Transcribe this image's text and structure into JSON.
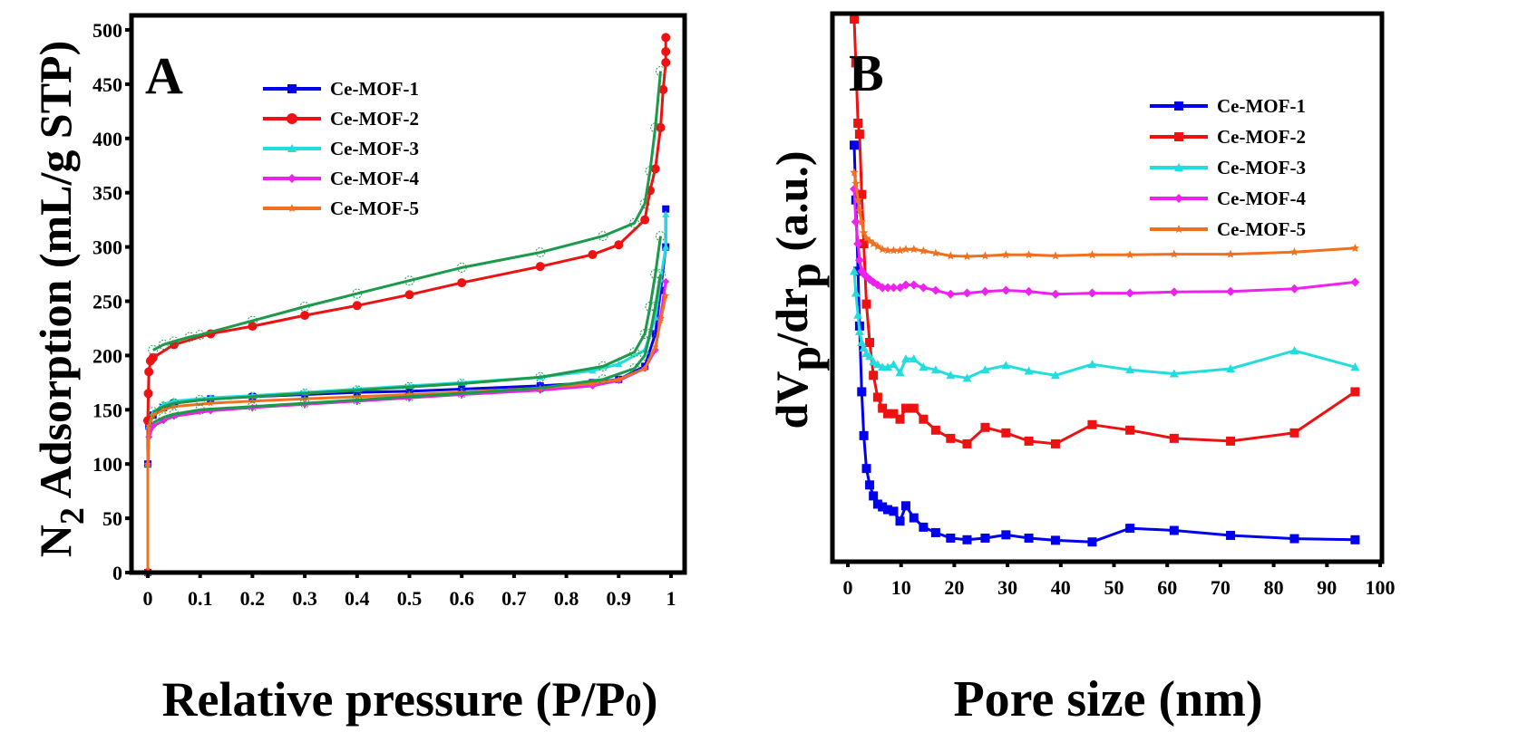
{
  "chart_data": [
    {
      "panel": "A",
      "type": "line",
      "title": "",
      "xlabel": "Relative pressure (P/P0)",
      "xlabel_parts": [
        "Relative pressure (P/P",
        "0",
        ")"
      ],
      "ylabel": "N2 Adsorption (mL/g STP)",
      "ylabel_parts": [
        "N",
        "2",
        " Adsorption (mL/g STP)"
      ],
      "xlim": [
        -0.04,
        1.02
      ],
      "ylim": [
        0,
        500
      ],
      "xticks": [
        0,
        0.1,
        0.2,
        0.3,
        0.4,
        0.5,
        0.6,
        0.7,
        0.8,
        0.9,
        1
      ],
      "xtick_labels": [
        "0",
        "0.1",
        "0.2",
        "0.3",
        "0.4",
        "0.5",
        "0.6",
        "0.7",
        "0.8",
        "0.9",
        "1"
      ],
      "yticks": [
        0,
        50,
        100,
        150,
        200,
        250,
        300,
        350,
        400,
        450,
        500
      ],
      "ytick_labels": [
        "0",
        "50",
        "100",
        "150",
        "200",
        "250",
        "300",
        "350",
        "400",
        "450",
        "500"
      ],
      "grid": false,
      "legend_position": "top-center",
      "series": [
        {
          "name": "Ce-MOF-1",
          "color": "#0000ee",
          "marker": "square",
          "x": [
            0,
            0,
            0.002,
            0.01,
            0.03,
            0.05,
            0.12,
            0.2,
            0.3,
            0.4,
            0.5,
            0.6,
            0.75,
            0.85,
            0.9,
            0.95,
            0.97,
            0.98,
            0.99,
            0.99
          ],
          "y": [
            0,
            100,
            135,
            145,
            152,
            156,
            160,
            162,
            164,
            166,
            167,
            169,
            172,
            175,
            178,
            190,
            220,
            260,
            300,
            335
          ]
        },
        {
          "name": "Ce-MOF-2",
          "color": "#ee1111",
          "marker": "circle",
          "x": [
            0,
            0,
            0.001,
            0.002,
            0.005,
            0.01,
            0.05,
            0.12,
            0.2,
            0.3,
            0.4,
            0.5,
            0.6,
            0.75,
            0.85,
            0.9,
            0.95,
            0.96,
            0.97,
            0.98,
            0.985,
            0.99,
            0.99,
            0.99
          ],
          "y": [
            0,
            140,
            165,
            185,
            195,
            198,
            210,
            220,
            227,
            237,
            246,
            256,
            267,
            282,
            293,
            302,
            325,
            352,
            372,
            410,
            445,
            470,
            480,
            493
          ]
        },
        {
          "name": "Ce-MOF-3",
          "color": "#22dddd",
          "marker": "triangle",
          "x": [
            0,
            0,
            0.002,
            0.01,
            0.03,
            0.05,
            0.12,
            0.2,
            0.3,
            0.4,
            0.5,
            0.6,
            0.75,
            0.85,
            0.9,
            0.95,
            0.97,
            0.98,
            0.99,
            0.99
          ],
          "y": [
            0,
            100,
            135,
            147,
            155,
            158,
            161,
            163,
            166,
            169,
            172,
            175,
            180,
            186,
            192,
            205,
            235,
            270,
            300,
            330
          ]
        },
        {
          "name": "Ce-MOF-4",
          "color": "#ee22ee",
          "marker": "diamond",
          "x": [
            0,
            0,
            0.002,
            0.01,
            0.03,
            0.05,
            0.12,
            0.2,
            0.3,
            0.4,
            0.5,
            0.6,
            0.75,
            0.85,
            0.9,
            0.95,
            0.97,
            0.98,
            0.99
          ],
          "y": [
            0,
            100,
            125,
            135,
            140,
            144,
            149,
            152,
            155,
            158,
            161,
            164,
            168,
            172,
            177,
            188,
            205,
            235,
            268
          ]
        },
        {
          "name": "Ce-MOF-5",
          "color": "#f07020",
          "marker": "star",
          "x": [
            0,
            0,
            0.002,
            0.01,
            0.03,
            0.05,
            0.12,
            0.2,
            0.3,
            0.4,
            0.5,
            0.6,
            0.75,
            0.85,
            0.9,
            0.95,
            0.97,
            0.98,
            0.99
          ],
          "y": [
            0,
            100,
            135,
            145,
            150,
            153,
            156,
            158,
            160,
            162,
            164,
            166,
            170,
            174,
            178,
            188,
            208,
            232,
            255
          ]
        },
        {
          "name": "desorption-2",
          "color": "#1a9a4a",
          "marker": "open-circle",
          "legend": false,
          "x": [
            0.01,
            0.03,
            0.05,
            0.08,
            0.1,
            0.2,
            0.3,
            0.4,
            0.5,
            0.6,
            0.75,
            0.87,
            0.93,
            0.95,
            0.96,
            0.97,
            0.98
          ],
          "y": [
            205,
            210,
            213,
            217,
            219,
            232,
            245,
            257,
            269,
            281,
            295,
            310,
            322,
            340,
            370,
            410,
            462
          ]
        },
        {
          "name": "desorption-upper-group",
          "color": "#1a9a4a",
          "marker": "open-circle",
          "legend": false,
          "x": [
            0.01,
            0.03,
            0.05,
            0.1,
            0.2,
            0.3,
            0.4,
            0.5,
            0.6,
            0.75,
            0.87,
            0.93,
            0.95,
            0.96,
            0.97,
            0.98
          ],
          "y": [
            148,
            153,
            156,
            159,
            162,
            165,
            168,
            171,
            174,
            180,
            190,
            203,
            220,
            245,
            275,
            310
          ]
        },
        {
          "name": "desorption-lower-group",
          "color": "#1a9a4a",
          "marker": "open-circle",
          "legend": false,
          "x": [
            0.01,
            0.03,
            0.05,
            0.1,
            0.2,
            0.3,
            0.4,
            0.5,
            0.6,
            0.75,
            0.87,
            0.93,
            0.95,
            0.96,
            0.97,
            0.98
          ],
          "y": [
            138,
            143,
            146,
            150,
            153,
            156,
            159,
            162,
            165,
            170,
            178,
            188,
            200,
            220,
            245,
            275
          ]
        }
      ]
    },
    {
      "panel": "B",
      "type": "line",
      "title": "",
      "xlabel": "Pore size (nm)",
      "ylabel": "dVp/drp (a.u.)",
      "ylabel_parts": [
        "dV",
        "p",
        "/dr",
        "p",
        " (a.u.)"
      ],
      "xlim": [
        -2,
        100
      ],
      "ylim": [
        0,
        100
      ],
      "y_units_note": "arbitrary units; values normalized 0-100 to plot frame",
      "xticks": [
        0,
        10,
        20,
        30,
        40,
        50,
        60,
        70,
        80,
        90,
        100
      ],
      "xtick_labels": [
        "0",
        "10",
        "20",
        "30",
        "40",
        "50",
        "60",
        "70",
        "80",
        "90",
        "100"
      ],
      "yticks": [],
      "grid": false,
      "legend_position": "top-center",
      "series": [
        {
          "name": "Ce-MOF-1",
          "color": "#0000ee",
          "marker": "square",
          "x": [
            1.2,
            1.5,
            1.9,
            2.2,
            2.6,
            3.0,
            3.5,
            4.1,
            4.8,
            5.6,
            6.5,
            7.5,
            8.6,
            9.8,
            10.9,
            12.4,
            14.2,
            16.5,
            19.3,
            22.4,
            25.8,
            29.7,
            34.0,
            39.0,
            45.9,
            53.0,
            61.3,
            71.9,
            83.9,
            95.3
          ],
          "y": [
            76,
            66,
            53,
            43,
            31,
            23,
            17,
            14,
            12,
            10.5,
            10,
            9.5,
            9.2,
            7.4,
            10.2,
            8.0,
            6.3,
            5.3,
            4.3,
            4.0,
            4.3,
            4.9,
            4.3,
            3.9,
            3.6,
            6.1,
            5.7,
            4.8,
            4.2,
            4.0
          ]
        },
        {
          "name": "Ce-MOF-2",
          "color": "#ee1111",
          "marker": "square",
          "x": [
            1.2,
            1.5,
            1.9,
            2.2,
            2.6,
            3.0,
            3.5,
            4.1,
            4.8,
            5.6,
            6.5,
            7.5,
            8.6,
            9.8,
            10.9,
            12.4,
            14.2,
            16.5,
            19.3,
            22.4,
            25.8,
            29.7,
            34.0,
            39.0,
            45.9,
            53.0,
            61.3,
            71.9,
            83.9,
            95.3
          ],
          "y": [
            99,
            91,
            80,
            78,
            67,
            58,
            47,
            40,
            34,
            30,
            28,
            27,
            27,
            26,
            28,
            28,
            26,
            24,
            22.5,
            21.5,
            24.5,
            23.5,
            22,
            21.5,
            25,
            24,
            22.5,
            22,
            23.5,
            31
          ]
        },
        {
          "name": "Ce-MOF-3",
          "color": "#22dddd",
          "marker": "triangle",
          "x": [
            1.2,
            1.5,
            1.9,
            2.2,
            2.6,
            3.0,
            3.5,
            4.1,
            4.8,
            5.6,
            6.5,
            7.5,
            8.6,
            9.8,
            10.9,
            12.4,
            14.2,
            16.5,
            19.3,
            22.4,
            25.8,
            29.7,
            34.0,
            39.0,
            45.9,
            53.0,
            61.3,
            71.9,
            83.9,
            95.3
          ],
          "y": [
            53,
            49,
            45,
            42,
            40,
            39,
            38,
            37.5,
            36.5,
            36,
            35.5,
            35.5,
            36,
            34.5,
            37,
            37,
            35.5,
            35,
            34,
            33.5,
            35,
            35.8,
            34.8,
            34,
            36,
            35,
            34.3,
            35.2,
            38.5,
            35.5
          ]
        },
        {
          "name": "Ce-MOF-4",
          "color": "#ee22ee",
          "marker": "diamond",
          "x": [
            1.2,
            1.5,
            1.9,
            2.2,
            2.6,
            3.0,
            3.5,
            4.1,
            4.8,
            5.6,
            6.5,
            7.5,
            8.6,
            9.8,
            10.9,
            12.4,
            14.2,
            16.5,
            19.3,
            22.4,
            25.8,
            29.7,
            34.0,
            39.0,
            45.9,
            53.0,
            61.3,
            71.9,
            83.9,
            95.3
          ],
          "y": [
            68,
            62,
            58,
            55,
            53,
            52.5,
            52,
            51.5,
            51,
            50.5,
            50,
            50,
            50,
            50,
            50.5,
            50.5,
            50,
            49.5,
            48.8,
            49,
            49.3,
            49.5,
            49.3,
            48.8,
            49,
            49,
            49.2,
            49.3,
            49.8,
            51
          ]
        },
        {
          "name": "Ce-MOF-5",
          "color": "#f07020",
          "marker": "star",
          "x": [
            1.2,
            1.5,
            1.9,
            2.2,
            2.6,
            3.0,
            3.5,
            4.1,
            4.8,
            5.6,
            6.5,
            7.5,
            8.6,
            9.8,
            10.9,
            12.4,
            14.2,
            16.5,
            19.3,
            22.4,
            25.8,
            29.7,
            34.0,
            39.0,
            45.9,
            53.0,
            61.3,
            71.9,
            83.9,
            95.3
          ],
          "y": [
            71,
            69,
            66,
            64,
            62,
            60,
            59,
            58.5,
            58,
            57.5,
            57,
            56.8,
            56.8,
            56.8,
            57,
            57,
            56.7,
            56.3,
            55.8,
            55.7,
            55.8,
            56,
            56,
            55.8,
            56,
            56,
            56.1,
            56.1,
            56.5,
            57.2
          ]
        }
      ]
    }
  ],
  "panels": {
    "a": {
      "letter": "A",
      "legend": [
        "Ce-MOF-1",
        "Ce-MOF-2",
        "Ce-MOF-3",
        "Ce-MOF-4",
        "Ce-MOF-5"
      ],
      "xlabel_main": "Relative pressure (P/P",
      "xlabel_sub": "0",
      "xlabel_end": ")",
      "ylabel_main": "N",
      "ylabel_sub": "2",
      "ylabel_rest": " Adsorption (mL/g STP)"
    },
    "b": {
      "letter": "B",
      "legend": [
        "Ce-MOF-1",
        "Ce-MOF-2",
        "Ce-MOF-3",
        "Ce-MOF-4",
        "Ce-MOF-5"
      ],
      "xlabel": "Pore size (nm)",
      "ylabel_1": "dV",
      "ylabel_2": "p",
      "ylabel_3": "/dr",
      "ylabel_4": "p",
      "ylabel_5": " (a.u.)"
    }
  }
}
